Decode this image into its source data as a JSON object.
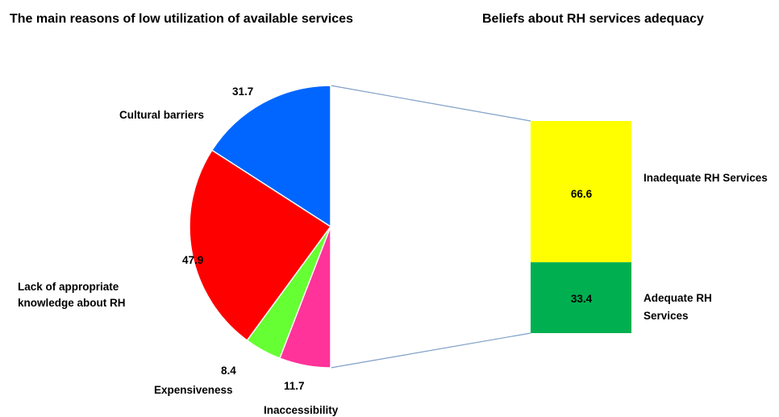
{
  "chart_data": [
    {
      "type": "pie",
      "title": "The main reasons of low utilization of available services",
      "slices": [
        {
          "label": "Cultural barriers",
          "value": 31.7,
          "color": "#0066ff"
        },
        {
          "label": "Lack of appropriate knowledge about RH",
          "value": 47.9,
          "color": "#ff0000"
        },
        {
          "label": "Expensiveness",
          "value": 8.4,
          "color": "#66ff33"
        },
        {
          "label": "Inaccessibility",
          "value": 11.7,
          "color": "#ff3399"
        }
      ],
      "label_lines": {
        "lack_line1": "Lack of appropriate",
        "lack_line2": "knowledge about RH"
      }
    },
    {
      "type": "bar",
      "stacked": true,
      "title": "Beliefs about  RH services adequacy",
      "segments": [
        {
          "label": "Inadequate RH Services",
          "value": 66.6,
          "color": "#ffff00"
        },
        {
          "label": "Adequate RH Services",
          "value": 33.4,
          "color": "#00b050"
        }
      ],
      "label_lines": {
        "adequate_line1": "Adequate RH",
        "adequate_line2": "Services"
      }
    }
  ],
  "colors": {
    "connector": "#7f9fc7"
  }
}
